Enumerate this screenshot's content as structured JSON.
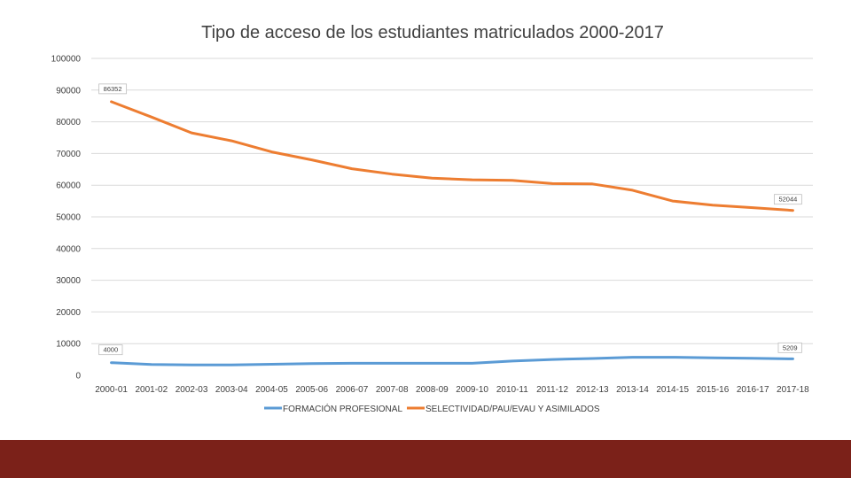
{
  "chart_data": {
    "type": "line",
    "title": "Tipo de acceso de los estudiantes matriculados 2000-2017",
    "categories": [
      "2000-01",
      "2001-02",
      "2002-03",
      "2003-04",
      "2004-05",
      "2005-06",
      "2006-07",
      "2007-08",
      "2008-09",
      "2009-10",
      "2010-11",
      "2011-12",
      "2012-13",
      "2013-14",
      "2014-15",
      "2015-16",
      "2016-17",
      "2017-18"
    ],
    "ylim": [
      0,
      100000
    ],
    "yticks": [
      0,
      10000,
      20000,
      30000,
      40000,
      50000,
      60000,
      70000,
      80000,
      90000,
      100000
    ],
    "grid": true,
    "legend_position": "bottom",
    "series": [
      {
        "name": "FORMACIÓN PROFESIONAL",
        "color": "#5b9bd5",
        "values": [
          4000,
          3400,
          3300,
          3300,
          3500,
          3700,
          3800,
          3800,
          3800,
          3800,
          4500,
          5000,
          5300,
          5700,
          5700,
          5500,
          5400,
          5209
        ],
        "data_labels": [
          {
            "index": 0,
            "text": "4000"
          },
          {
            "index": 17,
            "text": "5209"
          }
        ]
      },
      {
        "name": "SELECTIVIDAD/PAU/EVAU Y ASIMILADOS",
        "color": "#ed7d31",
        "values": [
          86352,
          81500,
          76500,
          74000,
          70500,
          68000,
          65200,
          63500,
          62200,
          61700,
          61500,
          60500,
          60400,
          58400,
          55000,
          53700,
          52900,
          52044
        ],
        "data_labels": [
          {
            "index": 0,
            "text": "86352"
          },
          {
            "index": 17,
            "text": "52044"
          }
        ]
      }
    ]
  },
  "footer": {
    "color": "#7b2119"
  }
}
